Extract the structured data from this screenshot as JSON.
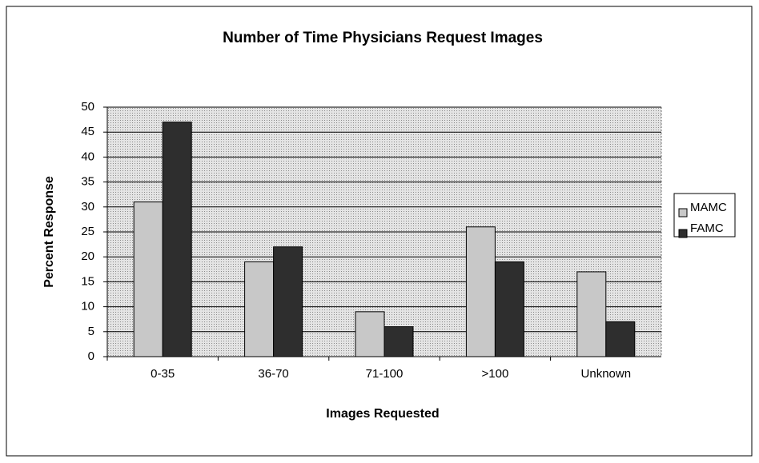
{
  "chart_data": {
    "type": "bar",
    "title": "Number of Time Physicians Request Images",
    "x_label": "Images Requested",
    "y_label": "Percent Response",
    "categories": [
      "0-35",
      "36-70",
      "71-100",
      ">100",
      "Unknown"
    ],
    "series": [
      {
        "name": "MAMC",
        "color": "#c8c8c8",
        "values": [
          31,
          19,
          9,
          26,
          17
        ]
      },
      {
        "name": "FAMC",
        "color": "#2e2e2e",
        "values": [
          47,
          22,
          6,
          19,
          7
        ]
      }
    ],
    "ylim": [
      0,
      50
    ],
    "yticks": [
      0,
      5,
      10,
      15,
      20,
      25,
      30,
      35,
      40,
      45,
      50
    ],
    "grid": true,
    "legend": "right"
  }
}
